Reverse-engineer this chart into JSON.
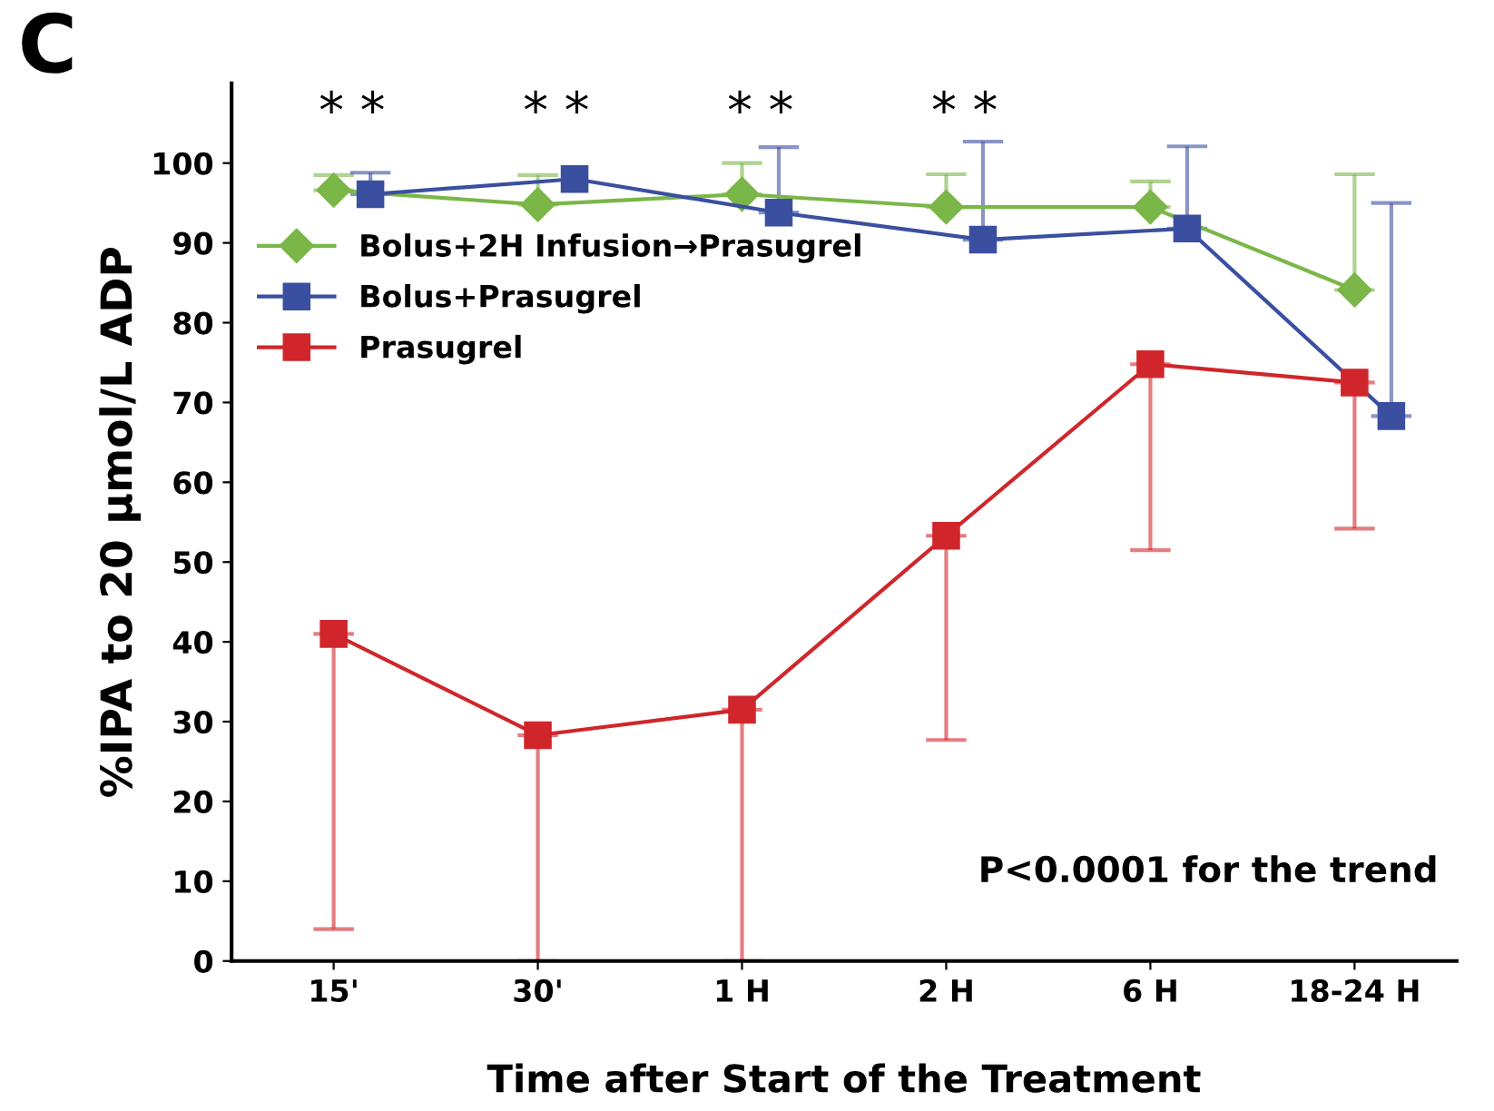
{
  "chart_data": {
    "type": "line",
    "xlabel": "Time after Start of the Treatment",
    "ylabel": "%IPA to 20 µmol/L ADP",
    "categories": [
      "15'",
      "30'",
      "1 H",
      "2 H",
      "6 H",
      "18-24 H"
    ],
    "ylim": [
      0,
      110
    ],
    "yticks": [
      0,
      10,
      20,
      30,
      40,
      50,
      60,
      70,
      80,
      90,
      100
    ],
    "grid": false,
    "legend": "top left",
    "series": [
      {
        "name": "Bolus+2H Infusion→Prasugrel",
        "color": "#7ab648",
        "marker": "diamond",
        "values": [
          96.6,
          94.8,
          96.1,
          94.5,
          94.5,
          84.1
        ],
        "errors": [
          [
            96.6,
            98.5
          ],
          [
            94.8,
            98.5
          ],
          [
            96.1,
            100.0
          ],
          [
            94.5,
            98.6
          ],
          [
            94.5,
            97.7
          ],
          [
            84.1,
            98.6
          ]
        ]
      },
      {
        "name": "Bolus+Prasugrel",
        "color": "#3b4fa0",
        "marker": "square",
        "values": [
          96.1,
          98.0,
          93.8,
          90.4,
          91.8,
          68.3
        ],
        "errors": [
          [
            96.1,
            98.8
          ],
          null,
          [
            93.8,
            102.0
          ],
          [
            90.4,
            102.7
          ],
          [
            91.8,
            102.1
          ],
          [
            68.3,
            95.0
          ]
        ]
      },
      {
        "name": "Prasugrel",
        "color": "#d0262b",
        "marker": "square",
        "values": [
          41.0,
          28.3,
          31.5,
          53.3,
          74.8,
          72.5
        ],
        "errors": [
          [
            4.0,
            41.0
          ],
          [
            0,
            28.3
          ],
          [
            0,
            31.5
          ],
          [
            27.7,
            53.3
          ],
          [
            51.5,
            74.8
          ],
          [
            54.2,
            72.5
          ]
        ]
      }
    ],
    "annotations": [
      "C",
      "* *",
      "* *",
      "* *",
      "* *",
      "P<0.0001 for the trend"
    ]
  }
}
